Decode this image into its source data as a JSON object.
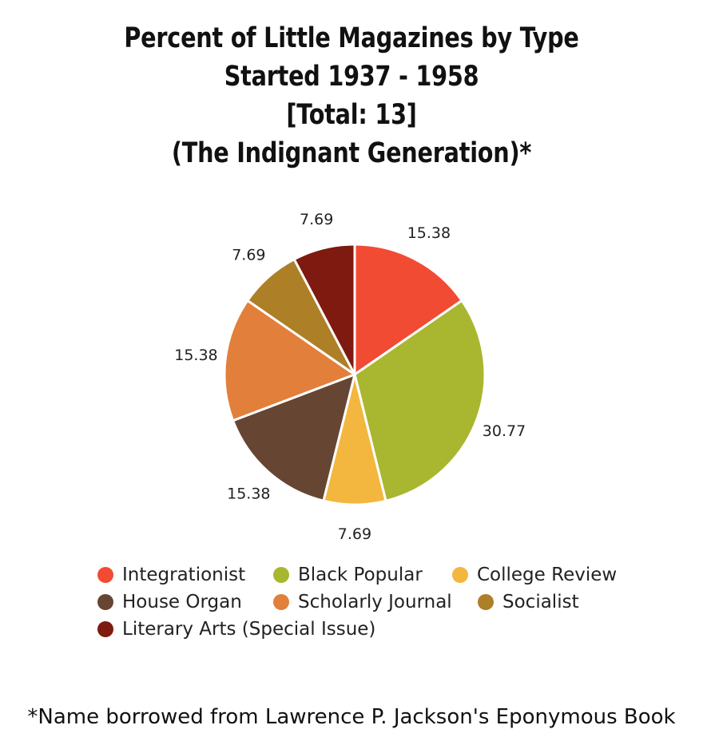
{
  "title_lines": [
    "Percent of Little Magazines by Type",
    "Started 1937 - 1958",
    "[Total: 13]",
    "(The Indignant Generation)*"
  ],
  "footnote": "*Name borrowed from Lawrence P. Jackson's Eponymous Book",
  "chart_data": {
    "type": "pie",
    "title": "Percent of Little Magazines by Type Started 1937 - 1958 [Total: 13] (The Indignant Generation)*",
    "categories": [
      "Integrationist",
      "Black Popular",
      "College Review",
      "House Organ",
      "Scholarly Journal",
      "Socialist",
      "Literary Arts (Special Issue)"
    ],
    "values": [
      15.38,
      30.77,
      7.69,
      15.38,
      15.38,
      7.69,
      7.69
    ],
    "labels": [
      "15.38",
      "30.77",
      "7.69",
      "15.38",
      "15.38",
      "7.69",
      "7.69"
    ],
    "colors": [
      "#f24b33",
      "#a9b730",
      "#f3b63f",
      "#674533",
      "#e27f3b",
      "#ad7f27",
      "#7e1a10"
    ],
    "legend_position": "bottom",
    "start_angle": "12 o'clock, clockwise"
  }
}
